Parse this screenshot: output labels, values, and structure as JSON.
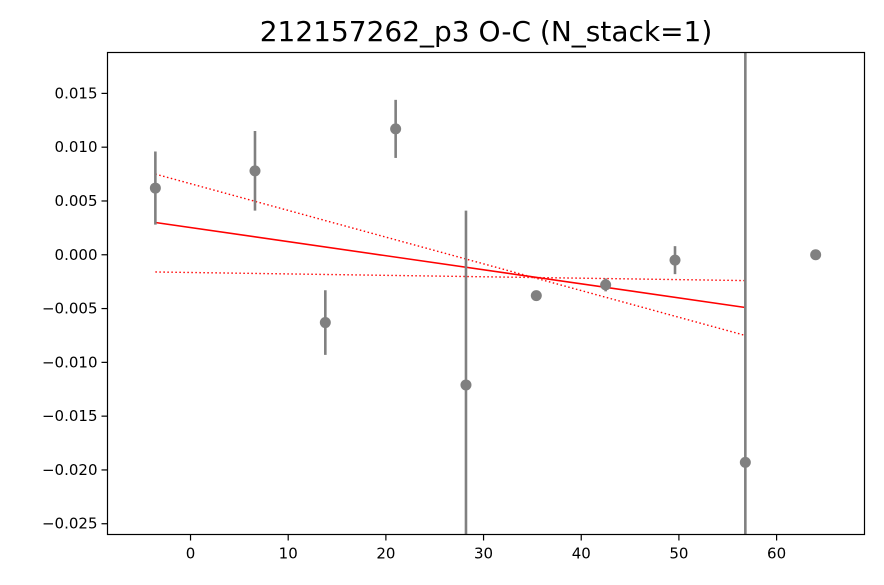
{
  "chart_data": {
    "type": "scatter",
    "title": "212157262_p3 O-C (N_stack=1)",
    "xlabel": "",
    "ylabel": "",
    "xlim": [
      -8.5,
      69
    ],
    "ylim": [
      -0.026,
      0.0188
    ],
    "xticks": [
      0,
      10,
      20,
      30,
      40,
      50,
      60
    ],
    "xtick_labels": [
      "0",
      "10",
      "20",
      "30",
      "40",
      "50",
      "60"
    ],
    "yticks": [
      -0.025,
      -0.02,
      -0.015,
      -0.01,
      -0.005,
      0.0,
      0.005,
      0.01,
      0.015
    ],
    "ytick_labels": [
      "−0.025",
      "−0.020",
      "−0.015",
      "−0.010",
      "−0.005",
      "0.000",
      "0.005",
      "0.010",
      "0.015"
    ],
    "grid": false,
    "points": {
      "color": "#808080",
      "x": [
        -3.6,
        6.6,
        13.8,
        21.0,
        28.2,
        35.4,
        42.5,
        49.6,
        56.8,
        64.0
      ],
      "y": [
        0.0062,
        0.0078,
        -0.0063,
        0.0117,
        -0.0121,
        -0.0038,
        -0.0028,
        -0.0005,
        -0.0193,
        0.0
      ],
      "yerr": [
        0.0034,
        0.0037,
        0.003,
        0.0027,
        0.0162,
        0.0004,
        0.0006,
        0.0013,
        0.042,
        0.0
      ]
    },
    "fit": {
      "color": "#ff0000",
      "x": [
        -3.6,
        56.8
      ],
      "y": [
        0.003,
        -0.0049
      ]
    },
    "fit_bounds": {
      "color": "#ff0000",
      "style": "dotted",
      "lines": [
        {
          "x": [
            -3.6,
            56.8
          ],
          "y": [
            0.0075,
            -0.0075
          ]
        },
        {
          "x": [
            -3.6,
            56.8
          ],
          "y": [
            -0.0016,
            -0.0024
          ]
        }
      ]
    }
  }
}
